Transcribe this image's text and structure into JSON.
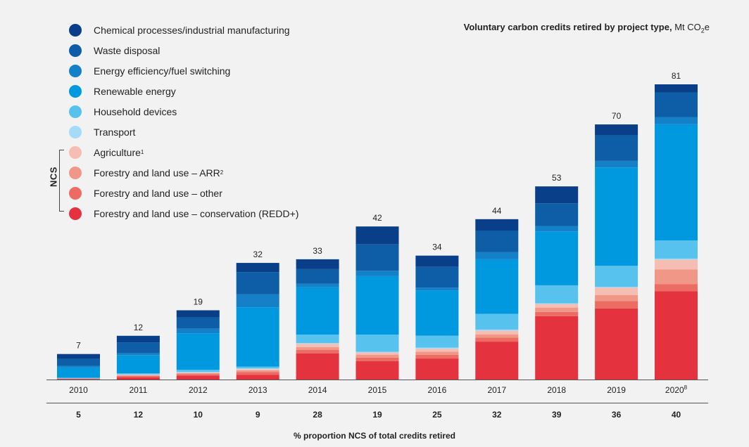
{
  "chart_data": {
    "type": "bar",
    "stacked": true,
    "title": "Voluntary carbon credits retired by project type,",
    "title_unit": "Mt CO",
    "title_unit_sub": "2",
    "title_unit_suffix": "e",
    "categories": [
      "2010",
      "2011",
      "2012",
      "2013",
      "2014",
      "2015",
      "2016",
      "2017",
      "2018",
      "2019",
      "2020"
    ],
    "category_superscripts": [
      "",
      "",
      "",
      "",
      "",
      "",
      "",
      "",
      "",
      "",
      "8"
    ],
    "totals": [
      7,
      12,
      19,
      32,
      33,
      42,
      34,
      44,
      53,
      70,
      81
    ],
    "ncs_proportion": [
      5,
      12,
      10,
      9,
      28,
      19,
      25,
      32,
      39,
      36,
      40
    ],
    "ncs_label": "NCS",
    "footer_label": "% proportion NCS of total credits retired",
    "series": [
      {
        "name": "Forestry and land use – conservation (REDD+)",
        "color": "#e5323f",
        "values": [
          0.1,
          0.6,
          1.1,
          1.3,
          7.2,
          5.0,
          5.6,
          10.4,
          17.6,
          19.5,
          24.3
        ]
      },
      {
        "name": "Forestry and land use – other",
        "color": "#ec6c63",
        "values": [
          0.1,
          0.4,
          0.4,
          0.7,
          0.9,
          1.0,
          1.0,
          1.1,
          1.2,
          2.0,
          2.0
        ]
      },
      {
        "name": "Forestry and land use – ARR",
        "color": "#f19787",
        "values": [
          0.1,
          0.2,
          0.3,
          0.5,
          0.8,
          0.8,
          0.8,
          0.9,
          1.2,
          1.7,
          4.0
        ]
      },
      {
        "name": "Agriculture",
        "color": "#f6bdb2",
        "values": [
          0.0,
          0.1,
          0.1,
          0.3,
          0.9,
          0.6,
          0.8,
          1.0,
          1.0,
          2.0,
          2.7
        ]
      },
      {
        "name": "Transport",
        "color": "#a6dbf7",
        "values": [
          0.0,
          0.1,
          0.2,
          0.2,
          0.2,
          0.2,
          0.3,
          0.3,
          0.2,
          0.2,
          0.3
        ]
      },
      {
        "name": "Household devices",
        "color": "#58c2ef",
        "values": [
          0.2,
          0.3,
          0.6,
          0.5,
          2.3,
          4.7,
          3.2,
          4.3,
          5.0,
          5.8,
          5.0
        ]
      },
      {
        "name": "Renewable energy",
        "color": "#0099e0",
        "values": [
          2.8,
          5.0,
          10.0,
          16.0,
          13.0,
          16.0,
          12.0,
          15.0,
          15.0,
          27.0,
          32.0
        ]
      },
      {
        "name": "Energy efficiency/fuel switching",
        "color": "#1480c8",
        "values": [
          0.4,
          0.5,
          1.3,
          3.5,
          1.0,
          1.5,
          0.8,
          2.0,
          1.5,
          1.8,
          2.0
        ]
      },
      {
        "name": "Waste disposal",
        "color": "#0d5ea6",
        "values": [
          2.0,
          3.0,
          3.0,
          6.0,
          4.0,
          7.2,
          5.5,
          5.8,
          6.3,
          7.0,
          6.7
        ]
      },
      {
        "name": "Chemical processes/industrial manufacturing",
        "color": "#083f88",
        "values": [
          1.3,
          1.8,
          2.0,
          2.5,
          2.7,
          4.9,
          3.0,
          3.2,
          4.7,
          3.0,
          2.3
        ]
      }
    ]
  },
  "legend": [
    {
      "label": "Chemical processes/industrial manufacturing",
      "sup": "",
      "color": "#083f88"
    },
    {
      "label": "Waste disposal",
      "sup": "",
      "color": "#0d5ea6"
    },
    {
      "label": "Energy efficiency/fuel switching",
      "sup": "",
      "color": "#1480c8"
    },
    {
      "label": "Renewable energy",
      "sup": "",
      "color": "#0099e0"
    },
    {
      "label": "Household devices",
      "sup": "",
      "color": "#58c2ef"
    },
    {
      "label": "Transport",
      "sup": "",
      "color": "#a6dbf7"
    },
    {
      "label": "Agriculture",
      "sup": "1",
      "color": "#f6bdb2"
    },
    {
      "label": "Forestry and land use – ARR",
      "sup": "2",
      "color": "#f19787"
    },
    {
      "label": "Forestry and land use – other",
      "sup": "",
      "color": "#ec6c63"
    },
    {
      "label": "Forestry and land use – conservation (REDD+)",
      "sup": "",
      "color": "#e5323f"
    }
  ]
}
